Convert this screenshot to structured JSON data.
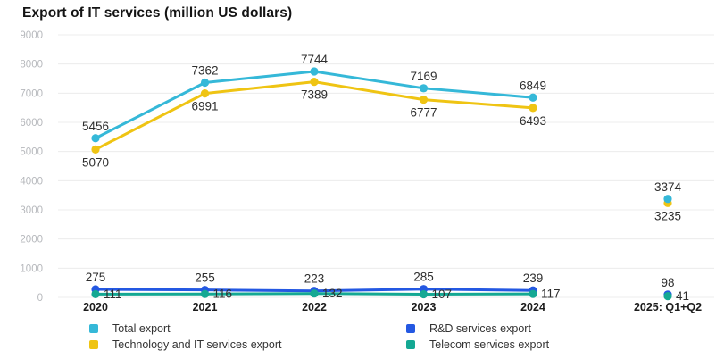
{
  "title": "Export of IT services (million US dollars)",
  "chart_data": {
    "type": "line",
    "categories": [
      "2020",
      "2021",
      "2022",
      "2023",
      "2024",
      "2025: Q1+Q2"
    ],
    "series": [
      {
        "name": "Total export",
        "color": "#35b8d8",
        "values": [
          5456,
          7362,
          7744,
          7169,
          6849,
          3374
        ],
        "labels": "above"
      },
      {
        "name": "Technology and IT services export",
        "color": "#efc413",
        "values": [
          5070,
          6991,
          7389,
          6777,
          6493,
          3235
        ],
        "labels": "below"
      },
      {
        "name": "R&D services export",
        "color": "#2458e2",
        "values": [
          275,
          255,
          223,
          285,
          239,
          98
        ],
        "labels": "above"
      },
      {
        "name": "Telecom services export",
        "color": "#14a893",
        "values": [
          111,
          116,
          132,
          107,
          117,
          41
        ],
        "labels": "right"
      }
    ],
    "ylim": [
      0,
      9000
    ],
    "ytick_step": 1000,
    "yticks": [
      0,
      1000,
      2000,
      3000,
      4000,
      5000,
      6000,
      7000,
      8000,
      9000
    ],
    "grid": true,
    "legend_position": "bottom",
    "last_category_disconnected": true
  },
  "colors": {
    "grid": "#ececec",
    "ytick_label": "#b7b9bd",
    "xtick_label": "#1c1c1c",
    "value_label": "#2e2e2e",
    "title": "#141414"
  }
}
